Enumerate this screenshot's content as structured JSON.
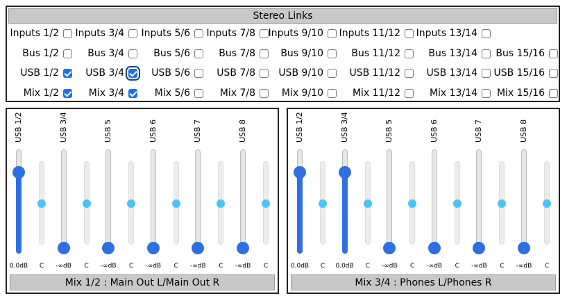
{
  "stereo_links": {
    "title": "Stereo Links",
    "rows": [
      [
        {
          "label": "Inputs 1/2",
          "checked": false
        },
        {
          "label": "Inputs 3/4",
          "checked": false
        },
        {
          "label": "Inputs 5/6",
          "checked": false
        },
        {
          "label": "Inputs 7/8",
          "checked": false
        },
        {
          "label": "Inputs 9/10",
          "checked": false
        },
        {
          "label": "Inputs 11/12",
          "checked": false
        },
        {
          "label": "Inputs 13/14",
          "checked": false
        }
      ],
      [
        {
          "label": "Bus 1/2",
          "checked": false
        },
        {
          "label": "Bus 3/4",
          "checked": false
        },
        {
          "label": "Bus 5/6",
          "checked": false
        },
        {
          "label": "Bus 7/8",
          "checked": false
        },
        {
          "label": "Bus 9/10",
          "checked": false
        },
        {
          "label": "Bus 11/12",
          "checked": false
        },
        {
          "label": "Bus 13/14",
          "checked": false
        },
        {
          "label": "Bus 15/16",
          "checked": false
        }
      ],
      [
        {
          "label": "USB 1/2",
          "checked": true
        },
        {
          "label": "USB 3/4",
          "checked": true
        },
        {
          "label": "USB 5/6",
          "checked": false
        },
        {
          "label": "USB 7/8",
          "checked": false
        },
        {
          "label": "USB 9/10",
          "checked": false
        },
        {
          "label": "USB 11/12",
          "checked": false
        },
        {
          "label": "USB 13/14",
          "checked": false
        },
        {
          "label": "USB 15/16",
          "checked": false
        }
      ],
      [
        {
          "label": "Mix 1/2",
          "checked": true
        },
        {
          "label": "Mix 3/4",
          "checked": true
        },
        {
          "label": "Mix 5/6",
          "checked": false
        },
        {
          "label": "Mix 7/8",
          "checked": false
        },
        {
          "label": "Mix 9/10",
          "checked": false
        },
        {
          "label": "Mix 11/12",
          "checked": false
        },
        {
          "label": "Mix 13/14",
          "checked": false
        },
        {
          "label": "Mix 15/16",
          "checked": false
        }
      ]
    ]
  },
  "mixes": [
    {
      "title": "Mix 1/2 : Main Out L/Main Out R",
      "channels": [
        {
          "name": "USB 1/2",
          "level": "0.0dB",
          "pan": "C"
        },
        {
          "name": "USB 3/4",
          "level": "-∞dB",
          "pan": "C"
        },
        {
          "name": "USB 5",
          "level": "-∞dB",
          "pan": "C"
        },
        {
          "name": "USB 6",
          "level": "-∞dB",
          "pan": "C"
        },
        {
          "name": "USB 7",
          "level": "-∞dB",
          "pan": "C"
        },
        {
          "name": "USB 8",
          "level": "-∞dB",
          "pan": "C"
        }
      ]
    },
    {
      "title": "Mix 3/4 : Phones L/Phones R",
      "channels": [
        {
          "name": "USB 1/2",
          "level": "0.0dB",
          "pan": "C"
        },
        {
          "name": "USB 3/4",
          "level": "0.0dB",
          "pan": "C"
        },
        {
          "name": "USB 5",
          "level": "-∞dB",
          "pan": "C"
        },
        {
          "name": "USB 6",
          "level": "-∞dB",
          "pan": "C"
        },
        {
          "name": "USB 7",
          "level": "-∞dB",
          "pan": "C"
        },
        {
          "name": "USB 8",
          "level": "-∞dB",
          "pan": "C"
        }
      ]
    }
  ]
}
